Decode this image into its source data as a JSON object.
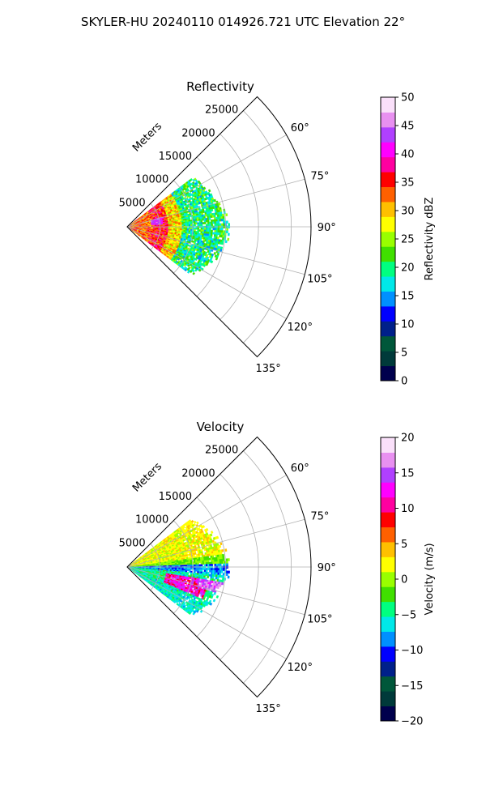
{
  "figure": {
    "suptitle": "SKYLER-HU  20240110  014926.721 UTC Elevation 22°"
  },
  "chart_data": [
    {
      "type": "heatmap",
      "projection": "polar-sector",
      "title": "Reflectivity",
      "radial_unit_label": "Meters",
      "radial_ticks": [
        5000,
        10000,
        15000,
        20000,
        25000
      ],
      "radial_tick_labels": [
        "5000",
        "10000",
        "15000",
        "20000",
        "25000"
      ],
      "rmax": 28000,
      "angle_range_deg": [
        45,
        135
      ],
      "angle_ticks": [
        60,
        75,
        90,
        105,
        120,
        135
      ],
      "angle_tick_labels": [
        "60°",
        "75°",
        "90°",
        "105°",
        "120°",
        "135°"
      ],
      "grid": true,
      "data_extent": {
        "min_angle_deg": 53,
        "max_angle_deg": 127,
        "max_range_m": 15500
      },
      "colorbar": {
        "label": "Reflectivity dBZ",
        "range": [
          0,
          50
        ],
        "ticks": [
          0,
          5,
          10,
          15,
          20,
          25,
          30,
          35,
          40,
          45,
          50
        ],
        "tick_labels": [
          "0",
          "5",
          "10",
          "15",
          "20",
          "25",
          "30",
          "35",
          "40",
          "45",
          "50"
        ],
        "colors": [
          "#00004d",
          "#003a3a",
          "#00573a",
          "#00208a",
          "#0000ff",
          "#0090ff",
          "#00e8e8",
          "#00ff80",
          "#40e000",
          "#99ff00",
          "#ffff00",
          "#ffc000",
          "#ff6000",
          "#ff0000",
          "#ff00a0",
          "#ff00ff",
          "#b040ff",
          "#e890f0",
          "#fae0fa"
        ]
      }
    },
    {
      "type": "heatmap",
      "projection": "polar-sector",
      "title": "Velocity",
      "radial_unit_label": "Meters",
      "radial_ticks": [
        5000,
        10000,
        15000,
        20000,
        25000
      ],
      "radial_tick_labels": [
        "5000",
        "10000",
        "15000",
        "20000",
        "25000"
      ],
      "rmax": 28000,
      "angle_range_deg": [
        45,
        135
      ],
      "angle_ticks": [
        60,
        75,
        90,
        105,
        120,
        135
      ],
      "angle_tick_labels": [
        "60°",
        "75°",
        "90°",
        "105°",
        "120°",
        "135°"
      ],
      "grid": true,
      "data_extent": {
        "min_angle_deg": 53,
        "max_angle_deg": 127,
        "max_range_m": 15500
      },
      "colorbar": {
        "label": "Velocity (m/s)",
        "range": [
          -20,
          20
        ],
        "ticks": [
          -20,
          -15,
          -10,
          -5,
          0,
          5,
          10,
          15,
          20
        ],
        "tick_labels": [
          "−20",
          "−15",
          "−10",
          "−5",
          "0",
          "5",
          "10",
          "15",
          "20"
        ],
        "colors": [
          "#00004d",
          "#003a3a",
          "#00573a",
          "#00208a",
          "#0000ff",
          "#0090ff",
          "#00e8e8",
          "#00ff80",
          "#40e000",
          "#99ff00",
          "#ffff00",
          "#ffc000",
          "#ff6000",
          "#ff0000",
          "#ff00a0",
          "#ff00ff",
          "#b040ff",
          "#e890f0",
          "#fae0fa"
        ]
      }
    }
  ]
}
